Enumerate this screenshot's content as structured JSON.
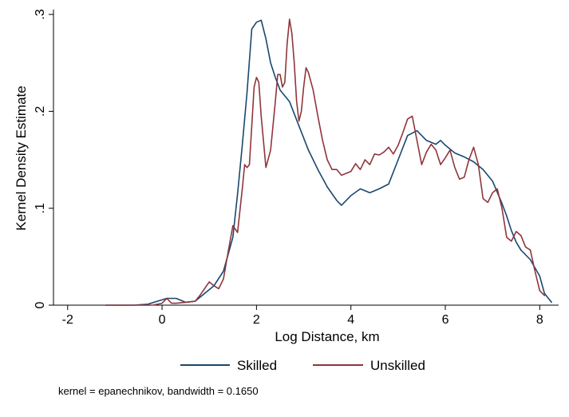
{
  "chart_data": {
    "type": "line",
    "title": "",
    "xlabel": "Log Distance, km",
    "ylabel": "Kernel Density Estimate",
    "xlim": [
      -2.3,
      8.4
    ],
    "ylim": [
      0,
      0.305
    ],
    "xticks": [
      -2,
      0,
      2,
      4,
      6,
      8
    ],
    "xtick_labels": [
      "-2",
      "0",
      "2",
      "4",
      "6",
      "8"
    ],
    "yticks": [
      0,
      0.1,
      0.2,
      0.3
    ],
    "ytick_labels": [
      "0",
      ".1",
      ".2",
      ".3"
    ],
    "grid": false,
    "legend_position": "bottom",
    "note": "kernel = epanechnikov, bandwidth = 0.1650",
    "series": [
      {
        "name": "Skilled",
        "color": "#1a476f",
        "x": [
          -1.2,
          -0.6,
          -0.3,
          -0.1,
          0.1,
          0.3,
          0.5,
          0.7,
          0.9,
          1.1,
          1.3,
          1.5,
          1.6,
          1.7,
          1.8,
          1.9,
          2.0,
          2.1,
          2.2,
          2.3,
          2.4,
          2.5,
          2.7,
          2.9,
          3.1,
          3.3,
          3.5,
          3.7,
          3.8,
          4.0,
          4.2,
          4.4,
          4.6,
          4.8,
          5.0,
          5.2,
          5.4,
          5.6,
          5.8,
          5.9,
          6.0,
          6.2,
          6.4,
          6.6,
          6.8,
          7.0,
          7.2,
          7.3,
          7.4,
          7.5,
          7.6,
          7.8,
          8.0,
          8.1,
          8.25
        ],
        "values": [
          0,
          0,
          0.001,
          0.004,
          0.007,
          0.007,
          0.003,
          0.004,
          0.012,
          0.02,
          0.035,
          0.07,
          0.115,
          0.165,
          0.22,
          0.285,
          0.292,
          0.294,
          0.275,
          0.25,
          0.235,
          0.222,
          0.21,
          0.185,
          0.16,
          0.14,
          0.122,
          0.108,
          0.103,
          0.113,
          0.12,
          0.116,
          0.12,
          0.125,
          0.15,
          0.175,
          0.18,
          0.17,
          0.166,
          0.17,
          0.165,
          0.157,
          0.153,
          0.148,
          0.14,
          0.128,
          0.105,
          0.092,
          0.077,
          0.065,
          0.057,
          0.047,
          0.03,
          0.012,
          0.003
        ]
      },
      {
        "name": "Unskilled",
        "color": "#90353b",
        "x": [
          -1.2,
          -0.5,
          -0.2,
          0.0,
          0.1,
          0.2,
          0.3,
          0.5,
          0.7,
          0.8,
          1.0,
          1.1,
          1.2,
          1.3,
          1.4,
          1.5,
          1.6,
          1.7,
          1.75,
          1.8,
          1.85,
          1.9,
          1.95,
          2.0,
          2.05,
          2.1,
          2.2,
          2.3,
          2.4,
          2.45,
          2.5,
          2.55,
          2.6,
          2.65,
          2.7,
          2.75,
          2.8,
          2.85,
          2.9,
          2.95,
          3.0,
          3.05,
          3.1,
          3.2,
          3.3,
          3.4,
          3.5,
          3.6,
          3.7,
          3.8,
          3.9,
          4.0,
          4.1,
          4.2,
          4.3,
          4.4,
          4.5,
          4.6,
          4.7,
          4.8,
          4.9,
          5.0,
          5.1,
          5.2,
          5.3,
          5.4,
          5.5,
          5.6,
          5.7,
          5.8,
          5.9,
          6.0,
          6.1,
          6.2,
          6.3,
          6.4,
          6.5,
          6.6,
          6.7,
          6.8,
          6.9,
          7.0,
          7.1,
          7.2,
          7.3,
          7.4,
          7.5,
          7.6,
          7.7,
          7.8,
          7.9,
          8.0,
          8.1
        ],
        "values": [
          0,
          0,
          0,
          0.002,
          0.007,
          0.002,
          0.002,
          0.003,
          0.004,
          0.01,
          0.024,
          0.02,
          0.017,
          0.027,
          0.055,
          0.082,
          0.075,
          0.12,
          0.145,
          0.142,
          0.145,
          0.185,
          0.225,
          0.235,
          0.23,
          0.195,
          0.142,
          0.16,
          0.21,
          0.238,
          0.238,
          0.225,
          0.23,
          0.27,
          0.295,
          0.28,
          0.25,
          0.21,
          0.19,
          0.2,
          0.225,
          0.245,
          0.24,
          0.222,
          0.195,
          0.17,
          0.15,
          0.14,
          0.14,
          0.134,
          0.136,
          0.138,
          0.146,
          0.14,
          0.15,
          0.145,
          0.156,
          0.155,
          0.158,
          0.163,
          0.156,
          0.165,
          0.178,
          0.192,
          0.195,
          0.17,
          0.145,
          0.158,
          0.166,
          0.16,
          0.145,
          0.152,
          0.16,
          0.142,
          0.13,
          0.132,
          0.15,
          0.163,
          0.145,
          0.11,
          0.106,
          0.116,
          0.12,
          0.1,
          0.07,
          0.066,
          0.076,
          0.072,
          0.06,
          0.057,
          0.035,
          0.015,
          0.01
        ]
      }
    ]
  }
}
